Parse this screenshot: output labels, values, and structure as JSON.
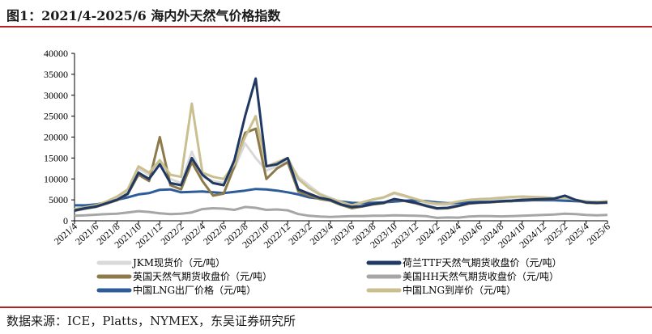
{
  "header": {
    "title": "图1：2021/4-2025/6 海内外天然气价格指数"
  },
  "footer": {
    "source": "数据来源：ICE，Platts，NYMEX，东吴证券研究所"
  },
  "chart_data": {
    "type": "line",
    "title": "2021/4-2025/6 海内外天然气价格指数",
    "xlabel": "",
    "ylabel": "",
    "ylim": [
      0,
      40000
    ],
    "yticks": [
      0,
      5000,
      10000,
      15000,
      20000,
      25000,
      30000,
      35000,
      40000
    ],
    "xticks": [
      "2021/4",
      "2021/6",
      "2021/8",
      "2021/10",
      "2021/12",
      "2022/2",
      "2022/4",
      "2022/6",
      "2022/8",
      "2022/10",
      "2022/12",
      "2023/2",
      "2023/4",
      "2023/6",
      "2023/8",
      "2023/10",
      "2023/12",
      "2024/2",
      "2024/4",
      "2024/6",
      "2024/8",
      "2024/10",
      "2024/12",
      "2025/2",
      "2025/4",
      "2025/6"
    ],
    "grid": false,
    "legend_position": "bottom",
    "x": [
      "2021/4",
      "2021/5",
      "2021/6",
      "2021/7",
      "2021/8",
      "2021/9",
      "2021/10",
      "2021/11",
      "2021/12",
      "2022/1",
      "2022/2",
      "2022/3",
      "2022/4",
      "2022/5",
      "2022/6",
      "2022/7",
      "2022/8",
      "2022/9",
      "2022/10",
      "2022/11",
      "2022/12",
      "2023/1",
      "2023/2",
      "2023/3",
      "2023/4",
      "2023/5",
      "2023/6",
      "2023/7",
      "2023/8",
      "2023/9",
      "2023/10",
      "2023/11",
      "2023/12",
      "2024/1",
      "2024/2",
      "2024/3",
      "2024/4",
      "2024/5",
      "2024/6",
      "2024/7",
      "2024/8",
      "2024/9",
      "2024/10",
      "2024/11",
      "2024/12",
      "2025/1",
      "2025/2",
      "2025/3",
      "2025/4",
      "2025/5",
      "2025/6"
    ],
    "series": [
      {
        "name": "JKM现货价（元/吨）",
        "color": "#d9d9d9",
        "values": [
          2700,
          3100,
          3600,
          4400,
          5400,
          7000,
          12500,
          11000,
          14000,
          10000,
          9000,
          16500,
          10500,
          9500,
          9000,
          12500,
          18500,
          15000,
          12000,
          13000,
          14500,
          10500,
          8500,
          6500,
          5500,
          4500,
          3800,
          4300,
          5000,
          5500,
          6500,
          5800,
          5000,
          4200,
          3800,
          3800,
          4200,
          4600,
          4700,
          4800,
          5000,
          5100,
          5200,
          5200,
          5300,
          5000,
          5200,
          4700,
          4400,
          4300,
          4500
        ]
      },
      {
        "name": "荷兰TTF天然气期货收盘价（元/吨）",
        "color": "#1f3864",
        "values": [
          2500,
          3000,
          3400,
          4200,
          5000,
          6500,
          11500,
          10000,
          13500,
          9000,
          8500,
          15000,
          11000,
          9000,
          8500,
          14500,
          25000,
          34000,
          13000,
          13500,
          15000,
          7500,
          6500,
          5500,
          5000,
          3900,
          3300,
          3500,
          4000,
          4300,
          5200,
          4800,
          4300,
          3600,
          3000,
          3100,
          3600,
          4200,
          4400,
          4500,
          4700,
          4800,
          5000,
          5100,
          5200,
          5300,
          6000,
          5000,
          4400,
          4300,
          4400
        ]
      },
      {
        "name": "英国天然气期货收盘价（元/吨）",
        "color": "#8c7a4b",
        "values": [
          2400,
          2900,
          3300,
          4100,
          4900,
          6400,
          11000,
          9500,
          20000,
          8500,
          7500,
          14000,
          9500,
          6000,
          6500,
          13000,
          21000,
          22000,
          10000,
          12500,
          14000,
          7000,
          6000,
          5200,
          4800,
          3800,
          3000,
          3400,
          3900,
          4200,
          5100,
          4700,
          4200,
          3500,
          2900,
          3000,
          3500,
          4100,
          4300,
          4400,
          4600,
          4700,
          4900,
          5000,
          5100,
          5200,
          5900,
          4900,
          4300,
          4200,
          4300
        ]
      },
      {
        "name": "美国HH天然气期货收盘价（元/吨）",
        "color": "#a6a6a6",
        "values": [
          1200,
          1300,
          1450,
          1600,
          1700,
          2000,
          2300,
          2100,
          1800,
          1600,
          1700,
          2000,
          2800,
          3000,
          2900,
          2600,
          3300,
          3100,
          2600,
          2700,
          2500,
          1600,
          1200,
          1000,
          900,
          1000,
          1100,
          1100,
          1200,
          1200,
          1300,
          1250,
          1200,
          1100,
          700,
          800,
          750,
          1000,
          1100,
          1100,
          1050,
          1100,
          1200,
          1300,
          1400,
          1500,
          1700,
          1600,
          1400,
          1300,
          1400
        ]
      },
      {
        "name": "中国LNG出厂价格（元/吨）",
        "color": "#2e5c99",
        "values": [
          3700,
          3700,
          3900,
          4400,
          5000,
          5600,
          6300,
          6600,
          7400,
          7500,
          6800,
          6900,
          7000,
          6800,
          6600,
          6900,
          7200,
          7600,
          7500,
          7200,
          6800,
          6300,
          5600,
          5300,
          5000,
          4600,
          4300,
          4200,
          4300,
          4400,
          4600,
          4800,
          4900,
          4700,
          4400,
          4200,
          4300,
          4400,
          4500,
          4500,
          4600,
          4700,
          4800,
          4900,
          4900,
          4900,
          4800,
          4700,
          4600,
          4500,
          4500
        ]
      },
      {
        "name": "中国LNG到岸价（元/吨）",
        "color": "#c9bf8f",
        "values": [
          2800,
          3200,
          3700,
          4600,
          5800,
          7500,
          13000,
          11500,
          14500,
          11000,
          10500,
          28000,
          11500,
          10500,
          10000,
          13500,
          20000,
          25000,
          13000,
          14000,
          15000,
          10000,
          7800,
          6300,
          5300,
          4500,
          3700,
          4400,
          5100,
          5600,
          6700,
          6000,
          5200,
          4500,
          4100,
          4100,
          4600,
          5000,
          5200,
          5300,
          5500,
          5700,
          5800,
          5700,
          5600,
          5400,
          5600,
          5000,
          4600,
          4500,
          4700
        ]
      }
    ]
  }
}
